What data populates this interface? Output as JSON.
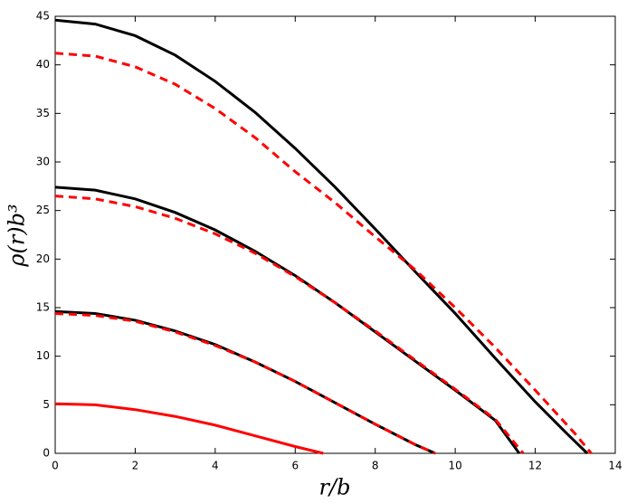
{
  "chart_data": {
    "type": "line",
    "xlabel": "r/b",
    "ylabel": "ρ(r)b³",
    "xlim": [
      0,
      14
    ],
    "xticks": [
      0,
      2,
      4,
      6,
      8,
      10,
      12,
      14
    ],
    "ylim": [
      0,
      45
    ],
    "yticks": [
      0,
      5,
      10,
      15,
      20,
      25,
      30,
      35,
      40,
      45
    ],
    "grid": false,
    "series": [
      {
        "color": "#000000",
        "style": "solid",
        "x": [
          0,
          1,
          2,
          3,
          4,
          5,
          6,
          7,
          8,
          9,
          10,
          11,
          12,
          12.8,
          13.3
        ],
        "values": [
          44.6,
          44.2,
          43.0,
          41.0,
          38.3,
          35.1,
          31.4,
          27.4,
          23.1,
          18.7,
          14.4,
          9.8,
          5.3,
          2.0,
          0
        ]
      },
      {
        "color": "#ff0000",
        "style": "dashed",
        "x": [
          0,
          1,
          2,
          3,
          4,
          5,
          6,
          7,
          8,
          9,
          10,
          11,
          12,
          13,
          13.4
        ],
        "values": [
          41.2,
          40.9,
          39.8,
          38.0,
          35.5,
          32.5,
          29.0,
          25.8,
          22.3,
          18.9,
          15.0,
          10.9,
          6.5,
          2.0,
          0
        ]
      },
      {
        "color": "#000000",
        "style": "solid",
        "x": [
          0,
          1,
          2,
          3,
          4,
          5,
          6,
          7,
          8,
          9,
          10,
          11,
          11.6
        ],
        "values": [
          27.4,
          27.1,
          26.2,
          24.8,
          23.0,
          20.8,
          18.3,
          15.5,
          12.5,
          9.5,
          6.5,
          3.4,
          0
        ]
      },
      {
        "color": "#ff0000",
        "style": "dashed",
        "x": [
          0,
          1,
          2,
          3,
          4,
          5,
          6,
          7,
          8,
          9,
          10,
          11,
          11.7
        ],
        "values": [
          26.5,
          26.2,
          25.4,
          24.2,
          22.6,
          20.6,
          18.2,
          15.5,
          12.6,
          9.6,
          6.6,
          3.5,
          0
        ]
      },
      {
        "color": "#000000",
        "style": "solid",
        "x": [
          0,
          1,
          2,
          3,
          4,
          5,
          6,
          7,
          8,
          9,
          9.5
        ],
        "values": [
          14.6,
          14.4,
          13.7,
          12.6,
          11.2,
          9.4,
          7.4,
          5.2,
          3.0,
          0.9,
          0
        ]
      },
      {
        "color": "#ff0000",
        "style": "dashed",
        "x": [
          0,
          1,
          2,
          3,
          4,
          5,
          6,
          7,
          8,
          9,
          9.5
        ],
        "values": [
          14.4,
          14.2,
          13.6,
          12.5,
          11.1,
          9.4,
          7.4,
          5.2,
          3.0,
          0.9,
          0
        ]
      },
      {
        "color": "#ff0000",
        "style": "solid",
        "x": [
          0,
          1,
          2,
          3,
          4,
          5,
          6,
          6.7
        ],
        "values": [
          5.1,
          5.0,
          4.5,
          3.8,
          2.9,
          1.8,
          0.7,
          0
        ]
      }
    ]
  }
}
